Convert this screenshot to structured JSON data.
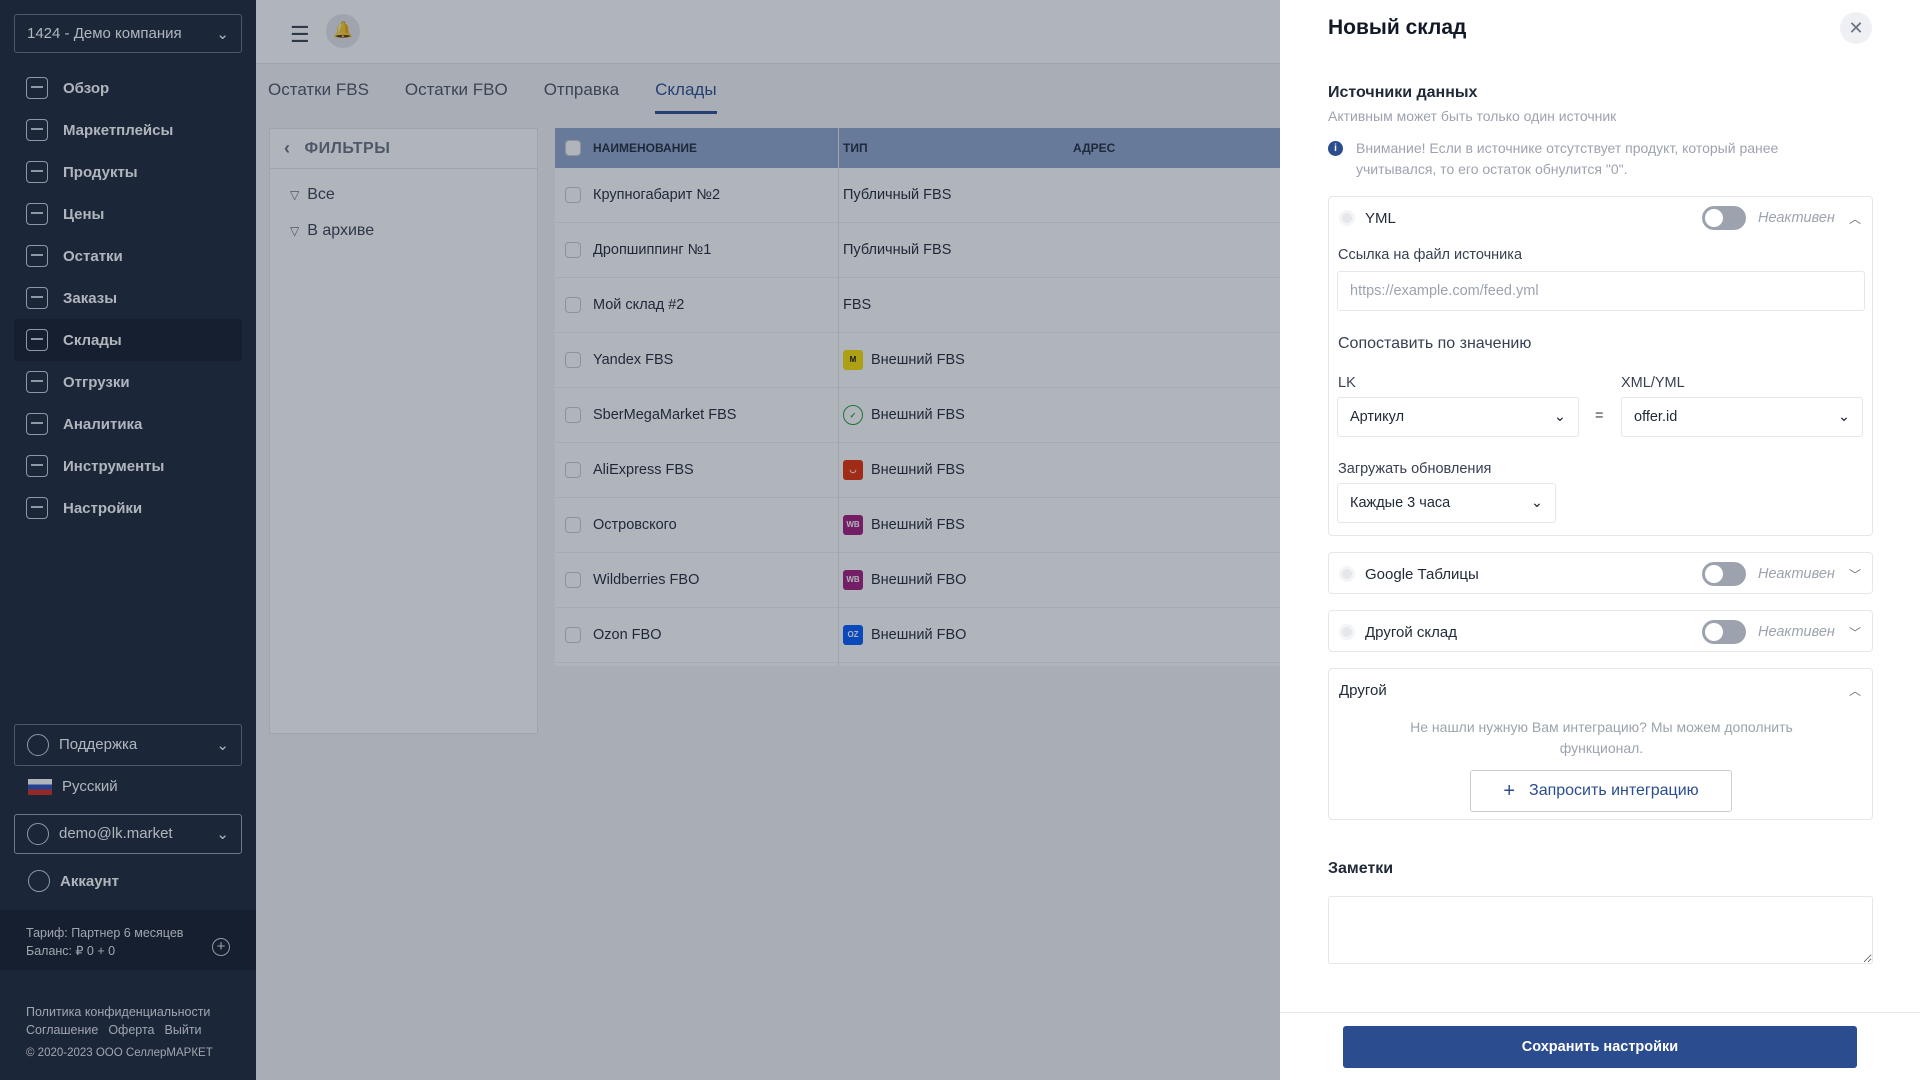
{
  "sidebar": {
    "company": "1424 - Демо компания",
    "items": [
      {
        "label": "Обзор"
      },
      {
        "label": "Маркетплейсы"
      },
      {
        "label": "Продукты"
      },
      {
        "label": "Цены"
      },
      {
        "label": "Остатки"
      },
      {
        "label": "Заказы"
      },
      {
        "label": "Склады"
      },
      {
        "label": "Отгрузки"
      },
      {
        "label": "Аналитика"
      },
      {
        "label": "Инструменты"
      },
      {
        "label": "Настройки"
      }
    ],
    "active_item": "Склады",
    "support": "Поддержка",
    "language": "Русский",
    "user": "demo@lk.market",
    "account": "Аккаунт",
    "tariff": "Тариф: Партнер 6 месяцев",
    "balance": "Баланс: ₽ 0 + 0",
    "links": [
      "Политика конфиденциальности",
      "Соглашение",
      "Оферта",
      "Выйти"
    ],
    "copyright": "© 2020-2023 ООО СеллерМАРКЕТ"
  },
  "tabs": [
    "Остатки FBS",
    "Остатки FBO",
    "Отправка",
    "Склады"
  ],
  "active_tab": "Склады",
  "filters": {
    "title": "ФИЛЬТРЫ",
    "items": [
      "Все",
      "В архиве"
    ]
  },
  "table": {
    "headers": [
      "НАИМЕНОВАНИЕ",
      "ТИП",
      "АДРЕС"
    ],
    "rows": [
      {
        "name": "Крупногабарит №2",
        "type": "Публичный FBS",
        "icon": ""
      },
      {
        "name": "Дропшиппинг №1",
        "type": "Публичный FBS",
        "icon": ""
      },
      {
        "name": "Мой склад #2",
        "type": "FBS",
        "icon": ""
      },
      {
        "name": "Yandex FBS",
        "type": "Внешний FBS",
        "icon": "yandex"
      },
      {
        "name": "SberMegaMarket FBS",
        "type": "Внешний FBS",
        "icon": "sber"
      },
      {
        "name": "AliExpress FBS",
        "type": "Внешний FBS",
        "icon": "aliexpress"
      },
      {
        "name": "Островского",
        "type": "Внешний FBS",
        "icon": "wildberries"
      },
      {
        "name": "Wildberries FBO",
        "type": "Внешний FBO",
        "icon": "wildberries"
      },
      {
        "name": "Ozon FBO",
        "type": "Внешний FBO",
        "icon": "ozon"
      }
    ]
  },
  "panel": {
    "title": "Новый склад",
    "sources_title": "Источники данных",
    "sources_subtitle": "Активным может быть только один источник",
    "warning": "Внимание! Если в источнике отсутствует продукт, который ранее учитывался, то его остаток обнулится \"0\".",
    "yml": {
      "name": "YML",
      "status": "Неактивен",
      "file_label": "Ссылка на файл источника",
      "file_placeholder": "https://example.com/feed.yml",
      "match_label": "Сопоставить по значению",
      "lk_label": "LK",
      "lk_value": "Артикул",
      "eq": "=",
      "xml_label": "XML/YML",
      "xml_value": "offer.id",
      "update_label": "Загружать обновления",
      "update_value": "Каждые 3 часа"
    },
    "google": {
      "name": "Google Таблицы",
      "status": "Неактивен"
    },
    "other_wh": {
      "name": "Другой склад",
      "status": "Неактивен"
    },
    "other": {
      "name": "Другой",
      "text": "Не нашли нужную Вам интеграцию? Мы можем дополнить функционал.",
      "button": "Запросить интеграцию"
    },
    "notes_title": "Заметки",
    "save": "Сохранить настройки"
  },
  "colors": {
    "accent": "#2b4d8f",
    "sidebar": "#1b2536",
    "table_header": "#8fa6cc"
  }
}
